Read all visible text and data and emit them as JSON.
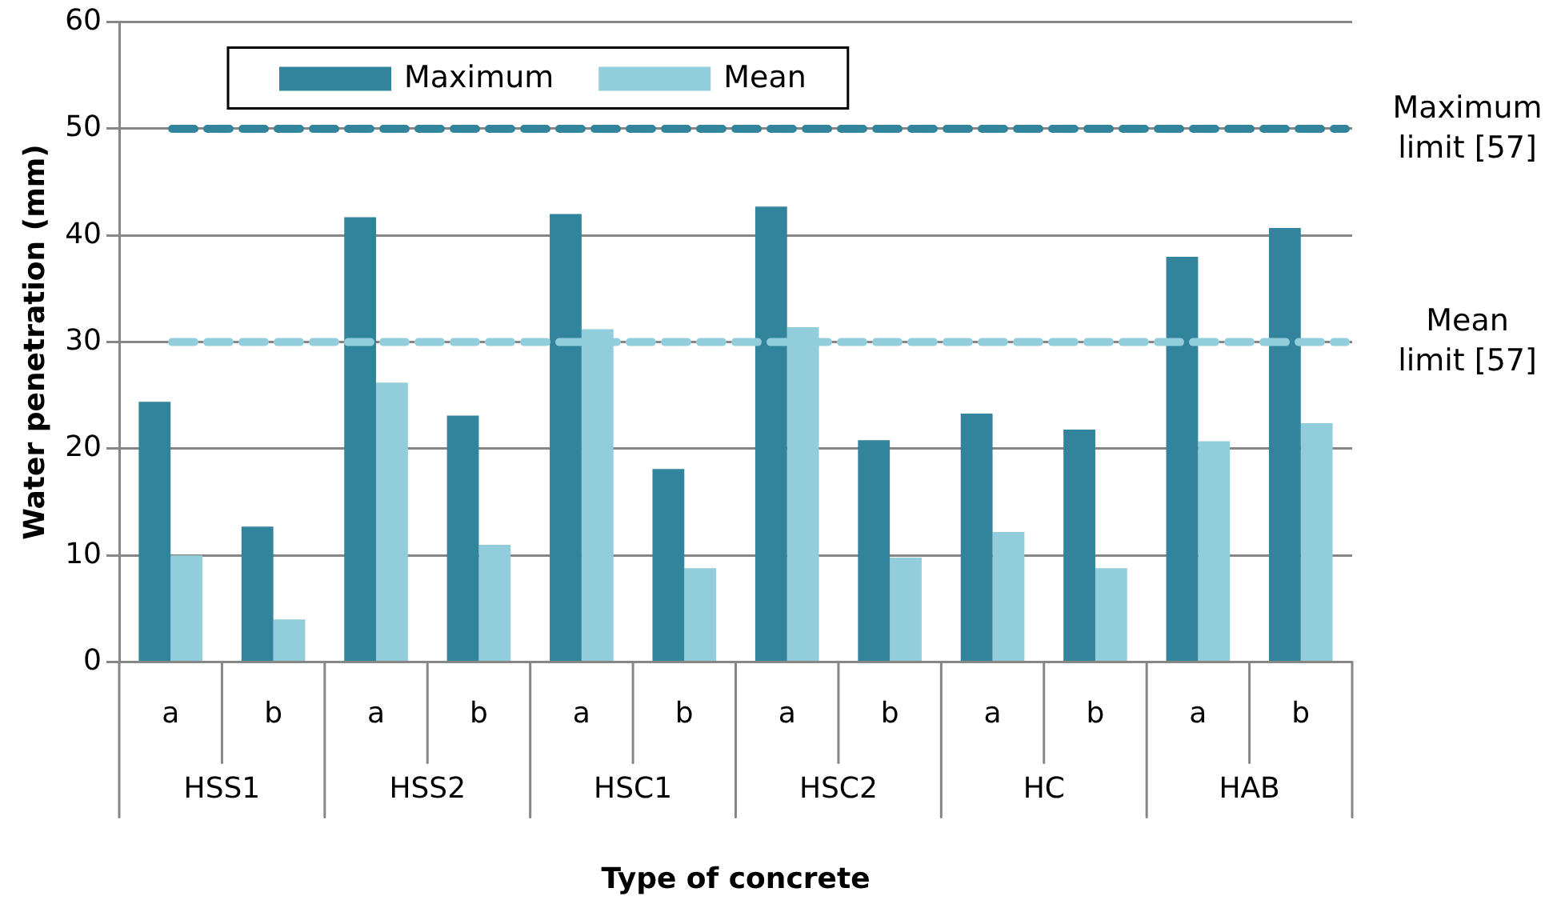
{
  "chart_data": {
    "type": "bar",
    "xlabel": "Type of concrete",
    "ylabel": "Water penetration (mm)",
    "categories": [
      "a",
      "b",
      "a",
      "b",
      "a",
      "b",
      "a",
      "b",
      "a",
      "b",
      "a",
      "b"
    ],
    "series": [
      {
        "name": "Maximum",
        "color": "#31849b",
        "values": [
          24.4,
          12.7,
          41.7,
          23.1,
          42.0,
          18.1,
          42.7,
          20.8,
          23.3,
          21.8,
          38.0,
          40.7
        ]
      },
      {
        "name": "Mean",
        "color": "#92cddc",
        "values": [
          10.0,
          4.0,
          26.2,
          11.0,
          31.2,
          8.8,
          31.4,
          9.8,
          12.2,
          8.8,
          20.7,
          22.4
        ]
      }
    ],
    "ylim": [
      0,
      60
    ],
    "yticks": [
      0,
      10,
      20,
      30,
      40,
      50,
      60
    ],
    "grid": "y",
    "legend": "top",
    "ref_lines": [
      {
        "axis": "y",
        "value": 50,
        "label": "Maximum limit [57]",
        "color": "#31849b",
        "line_style": "dashed"
      },
      {
        "axis": "y",
        "value": 30,
        "label": "Mean limit [57]",
        "color": "#92cddc",
        "line_style": "dashed"
      }
    ],
    "annotations": [
      "HSS1",
      "HSS2",
      "HSC1",
      "HSC2",
      "HC",
      "HAB"
    ]
  }
}
